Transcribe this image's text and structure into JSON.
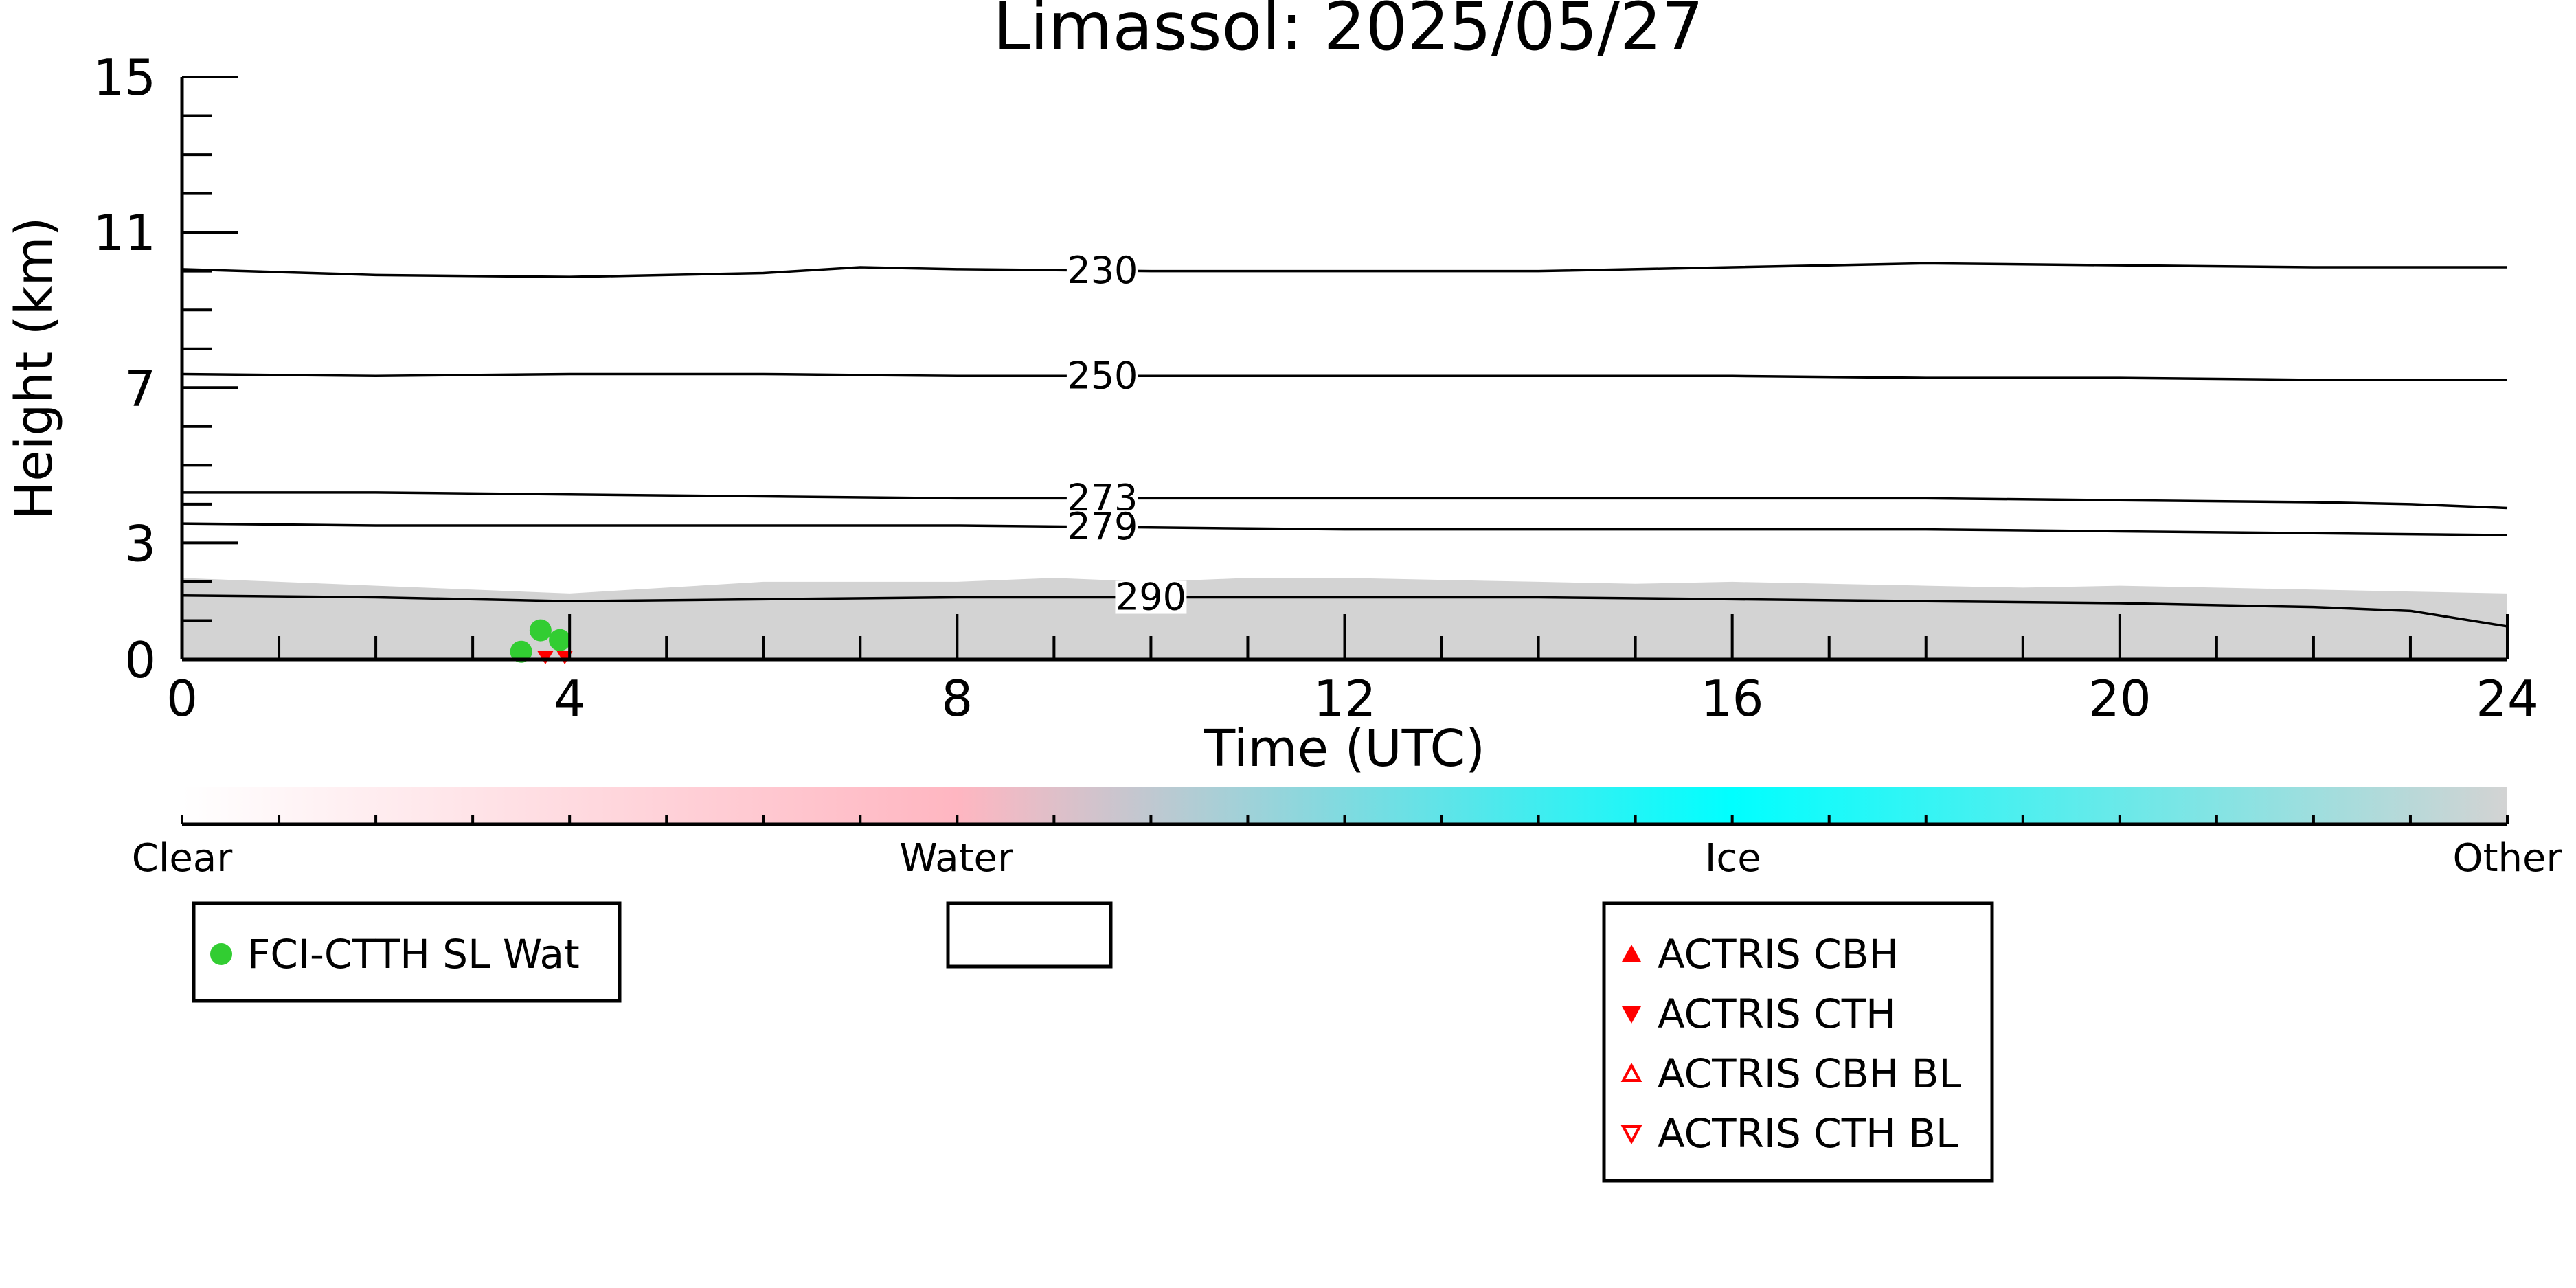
{
  "chart_data": {
    "type": "area",
    "title": "Limassol: 2025/05/27",
    "xlabel": "Time (UTC)",
    "ylabel": "Height (km)",
    "xlim": [
      0,
      24
    ],
    "ylim": [
      0,
      15
    ],
    "xticks": [
      0,
      4,
      8,
      12,
      16,
      20,
      24
    ],
    "yticks": [
      0,
      3,
      7,
      11,
      15
    ],
    "grid": false,
    "colors": {
      "background_echo": "#d3d3d3",
      "contour": "#000000",
      "fci_water": "#32cd32",
      "actris": "#ff0000"
    },
    "cloud_echo_top": {
      "x": [
        0,
        1,
        2,
        3,
        4,
        5,
        6,
        7,
        8,
        9,
        10,
        11,
        12,
        13,
        14,
        15,
        16,
        17,
        18,
        19,
        20,
        21,
        22,
        23,
        24
      ],
      "y": [
        2.1,
        2.0,
        1.9,
        1.8,
        1.7,
        1.85,
        2.0,
        2.0,
        2.0,
        2.1,
        2.0,
        2.1,
        2.1,
        2.05,
        2.0,
        1.95,
        2.0,
        1.95,
        1.9,
        1.85,
        1.9,
        1.85,
        1.8,
        1.75,
        1.7
      ]
    },
    "temperature_contours": [
      {
        "label": "230",
        "label_x": 9.5,
        "x": [
          0,
          2,
          4,
          6,
          7,
          8,
          10,
          12,
          14,
          16,
          18,
          20,
          22,
          24
        ],
        "y": [
          10.05,
          9.9,
          9.85,
          9.95,
          10.1,
          10.05,
          10.0,
          10.0,
          10.0,
          10.1,
          10.2,
          10.15,
          10.1,
          10.1
        ]
      },
      {
        "label": "250",
        "label_x": 9.5,
        "x": [
          0,
          2,
          4,
          6,
          8,
          10,
          12,
          14,
          16,
          18,
          20,
          22,
          24
        ],
        "y": [
          7.35,
          7.3,
          7.35,
          7.35,
          7.3,
          7.3,
          7.3,
          7.3,
          7.3,
          7.25,
          7.25,
          7.2,
          7.2
        ]
      },
      {
        "label": "273",
        "label_x": 9.5,
        "x": [
          0,
          2,
          4,
          6,
          8,
          10,
          12,
          14,
          16,
          18,
          20,
          22,
          23,
          24
        ],
        "y": [
          4.3,
          4.3,
          4.25,
          4.2,
          4.15,
          4.15,
          4.15,
          4.15,
          4.15,
          4.15,
          4.1,
          4.05,
          4.0,
          3.9
        ]
      },
      {
        "label": "279",
        "label_x": 9.5,
        "x": [
          0,
          2,
          4,
          6,
          8,
          10,
          12,
          14,
          16,
          18,
          20,
          22,
          24
        ],
        "y": [
          3.5,
          3.45,
          3.45,
          3.45,
          3.45,
          3.4,
          3.35,
          3.35,
          3.35,
          3.35,
          3.3,
          3.25,
          3.2
        ]
      },
      {
        "label": "290",
        "label_x": 10.0,
        "x": [
          0,
          2,
          4,
          6,
          8,
          10,
          12,
          14,
          16,
          18,
          20,
          22,
          23,
          24
        ],
        "y": [
          1.65,
          1.6,
          1.5,
          1.55,
          1.6,
          1.6,
          1.6,
          1.6,
          1.55,
          1.5,
          1.45,
          1.35,
          1.25,
          0.85
        ]
      }
    ],
    "fci_ctth_sl_wat": {
      "x": [
        3.5,
        3.7,
        3.9
      ],
      "y": [
        0.2,
        0.75,
        0.5
      ]
    },
    "actris_cth": {
      "x": [
        3.75,
        3.95
      ],
      "y": [
        0.05,
        0.05
      ]
    },
    "colorbar": {
      "labels": [
        "Clear",
        "Water",
        "Ice",
        "Other"
      ],
      "label_positions": [
        0,
        0.333,
        0.667,
        1.0
      ],
      "stops": [
        "#ffffff",
        "#ffb6c1",
        "#00ffff",
        "#d3d3d3"
      ]
    },
    "legends": [
      {
        "entries": [
          {
            "marker": "circle-filled",
            "label": "FCI-CTTH SL Wat"
          }
        ]
      },
      {
        "entries": []
      },
      {
        "entries": [
          {
            "marker": "triangle-up-filled",
            "label": "ACTRIS CBH"
          },
          {
            "marker": "triangle-down-filled",
            "label": "ACTRIS CTH"
          },
          {
            "marker": "triangle-up-open",
            "label": "ACTRIS CBH BL"
          },
          {
            "marker": "triangle-down-open",
            "label": "ACTRIS CTH BL"
          }
        ]
      }
    ]
  }
}
